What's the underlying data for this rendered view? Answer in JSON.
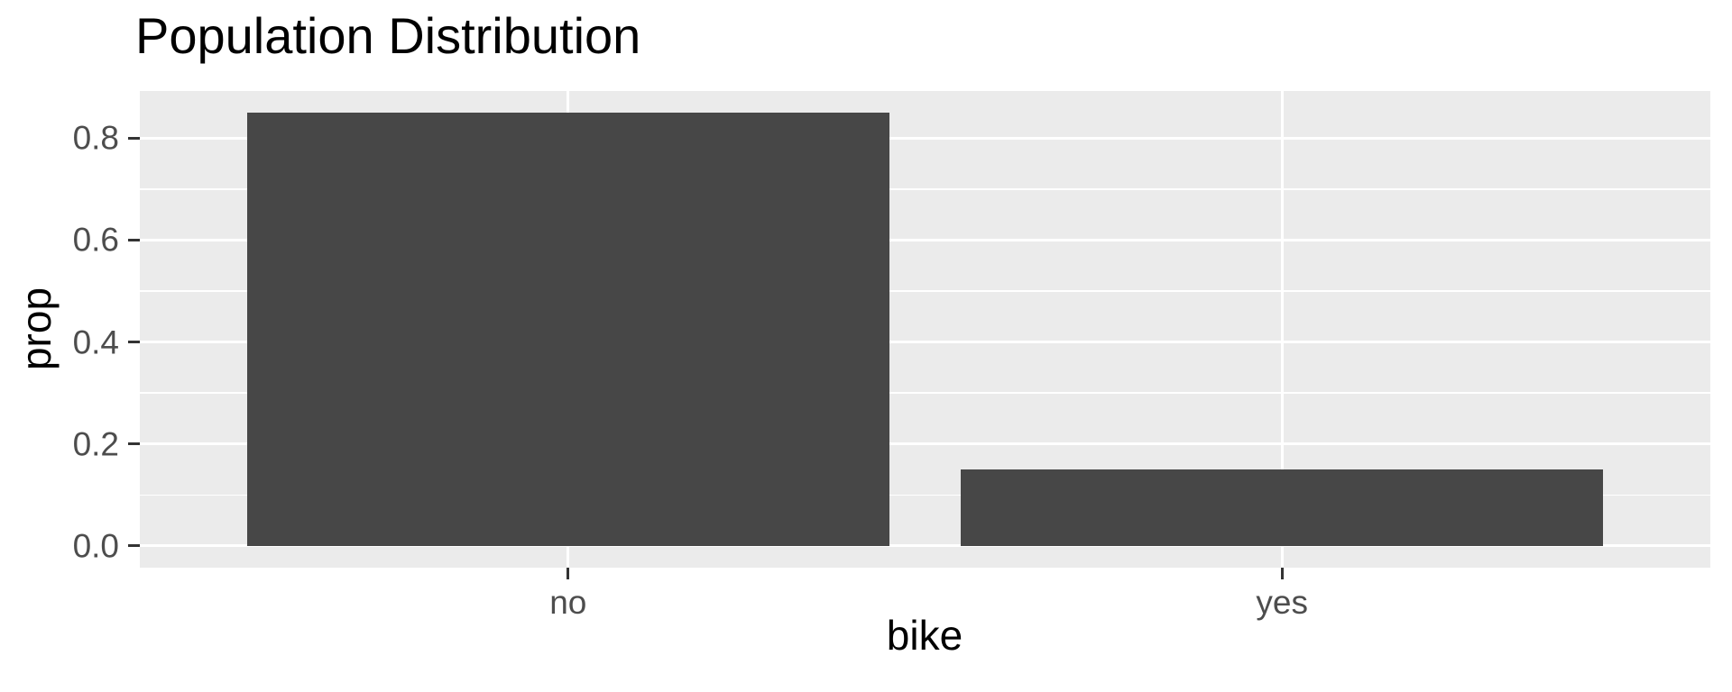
{
  "chart_data": {
    "type": "bar",
    "title": "Population Distribution",
    "xlabel": "bike",
    "ylabel": "prop",
    "categories": [
      "no",
      "yes"
    ],
    "values": [
      0.85,
      0.15
    ],
    "y_ticks": [
      {
        "value": 0.0,
        "label": "0.0"
      },
      {
        "value": 0.2,
        "label": "0.2"
      },
      {
        "value": 0.4,
        "label": "0.4"
      },
      {
        "value": 0.6,
        "label": "0.6"
      },
      {
        "value": 0.8,
        "label": "0.8"
      }
    ],
    "y_minor_ticks": [
      0.1,
      0.3,
      0.5,
      0.7
    ],
    "ylim": [
      -0.0425,
      0.8925
    ],
    "grid": "major-and-minor-horizontal, major-vertical-at-categories",
    "legend_position": "none",
    "colors": {
      "bar_fill": "#474747",
      "panel_background": "#EBEBEB",
      "gridline": "#FFFFFF",
      "tick_label": "#4D4D4D",
      "tick_mark": "#333333",
      "axis_title": "#000000",
      "plot_title": "#000000",
      "figure_background": "#FFFFFF"
    }
  }
}
